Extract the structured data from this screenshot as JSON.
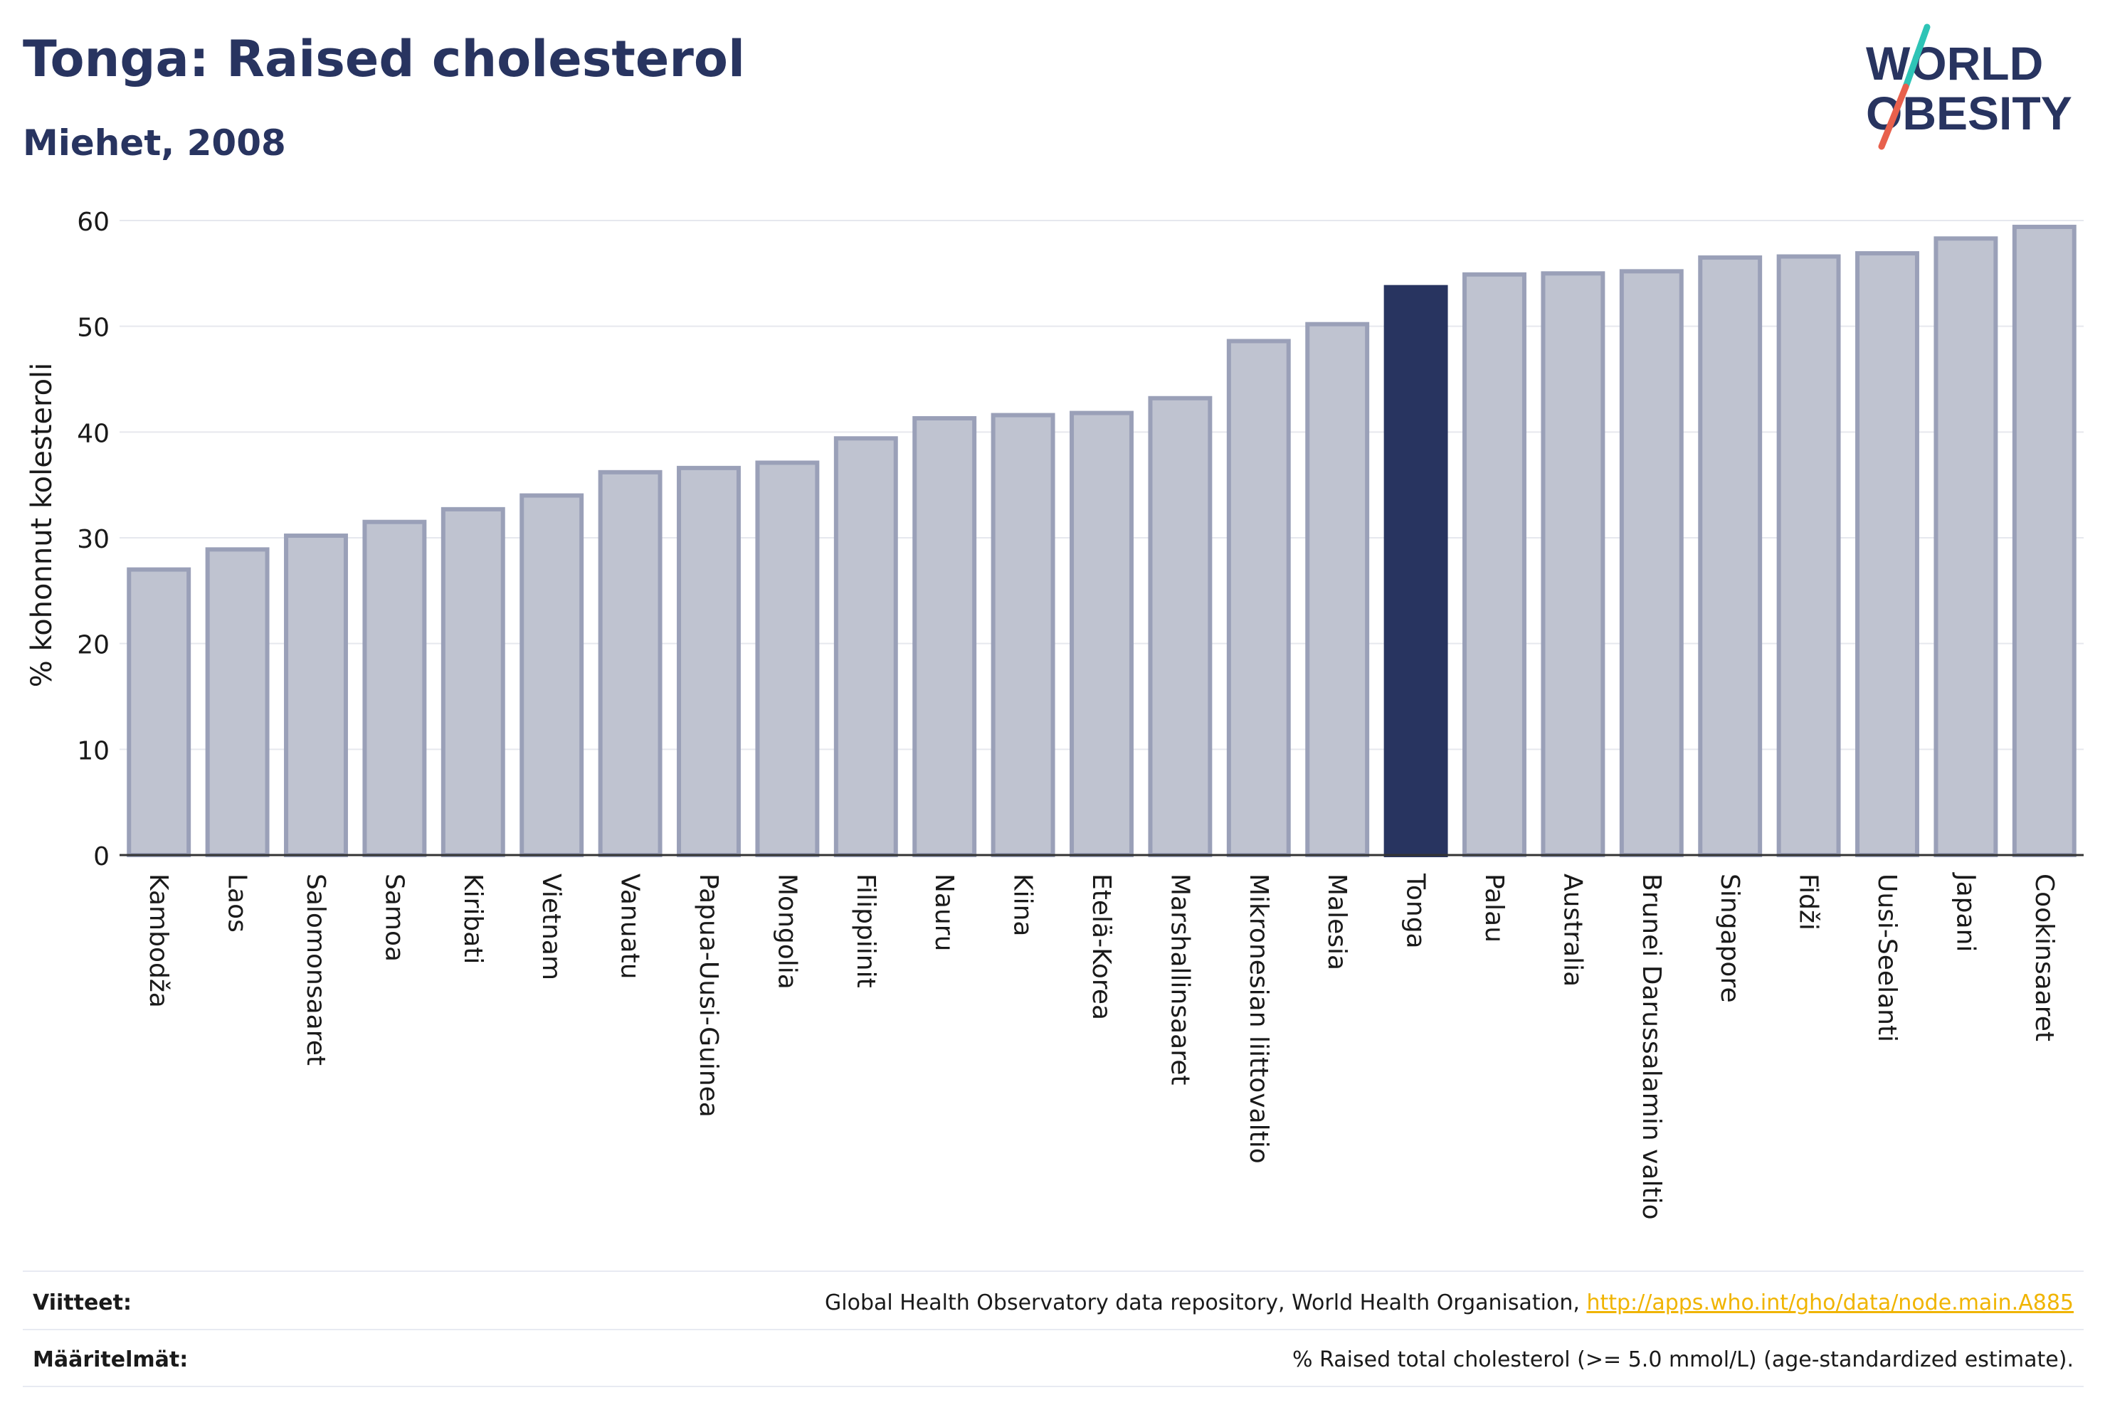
{
  "header": {
    "title": "Tonga: Raised cholesterol",
    "subtitle": "Miehet, 2008"
  },
  "logo": {
    "line1": "WORLD",
    "line2": "OBESITY",
    "text_color": "#283460",
    "slash_colors": [
      "#2ec4b6",
      "#e8604c"
    ]
  },
  "chart_data": {
    "type": "bar",
    "title": "Tonga: Raised cholesterol",
    "subtitle": "Miehet, 2008",
    "xlabel": "",
    "ylabel": "% kohonnut kolesteroli",
    "ylim": [
      0,
      60
    ],
    "yticks": [
      0,
      10,
      20,
      30,
      40,
      50,
      60
    ],
    "grid": true,
    "highlight": "Tonga",
    "highlight_color": "#283460",
    "bar_color": "#bfc3d0",
    "bar_edge_color": "#9aa0b8",
    "categories": [
      "Kambodža",
      "Laos",
      "Salomonsaaret",
      "Samoa",
      "Kiribati",
      "Vietnam",
      "Vanuatu",
      "Papua-Uusi-Guinea",
      "Mongolia",
      "Filippiinit",
      "Nauru",
      "Kiina",
      "Etelä-Korea",
      "Marshallinsaaret",
      "Mikronesian liittovaltio",
      "Malesia",
      "Tonga",
      "Palau",
      "Australia",
      "Brunei Darussalamin valtio",
      "Singapore",
      "Fidži",
      "Uusi-Seelanti",
      "Japani",
      "Cookinsaaret"
    ],
    "values": [
      27.0,
      28.9,
      30.2,
      31.5,
      32.7,
      34.0,
      36.2,
      36.6,
      37.1,
      39.4,
      41.3,
      41.6,
      41.8,
      43.2,
      48.6,
      50.2,
      53.7,
      54.9,
      55.0,
      55.2,
      56.5,
      56.6,
      56.9,
      58.3,
      59.4
    ]
  },
  "footer": {
    "references_label": "Viitteet:",
    "references_text": "Global Health Observatory data repository, World Health Organisation, ",
    "references_link": "http://apps.who.int/gho/data/node.main.A885",
    "definitions_label": "Määritelmät:",
    "definitions_text": "% Raised total cholesterol (>= 5.0 mmol/L) (age-standardized estimate)."
  }
}
